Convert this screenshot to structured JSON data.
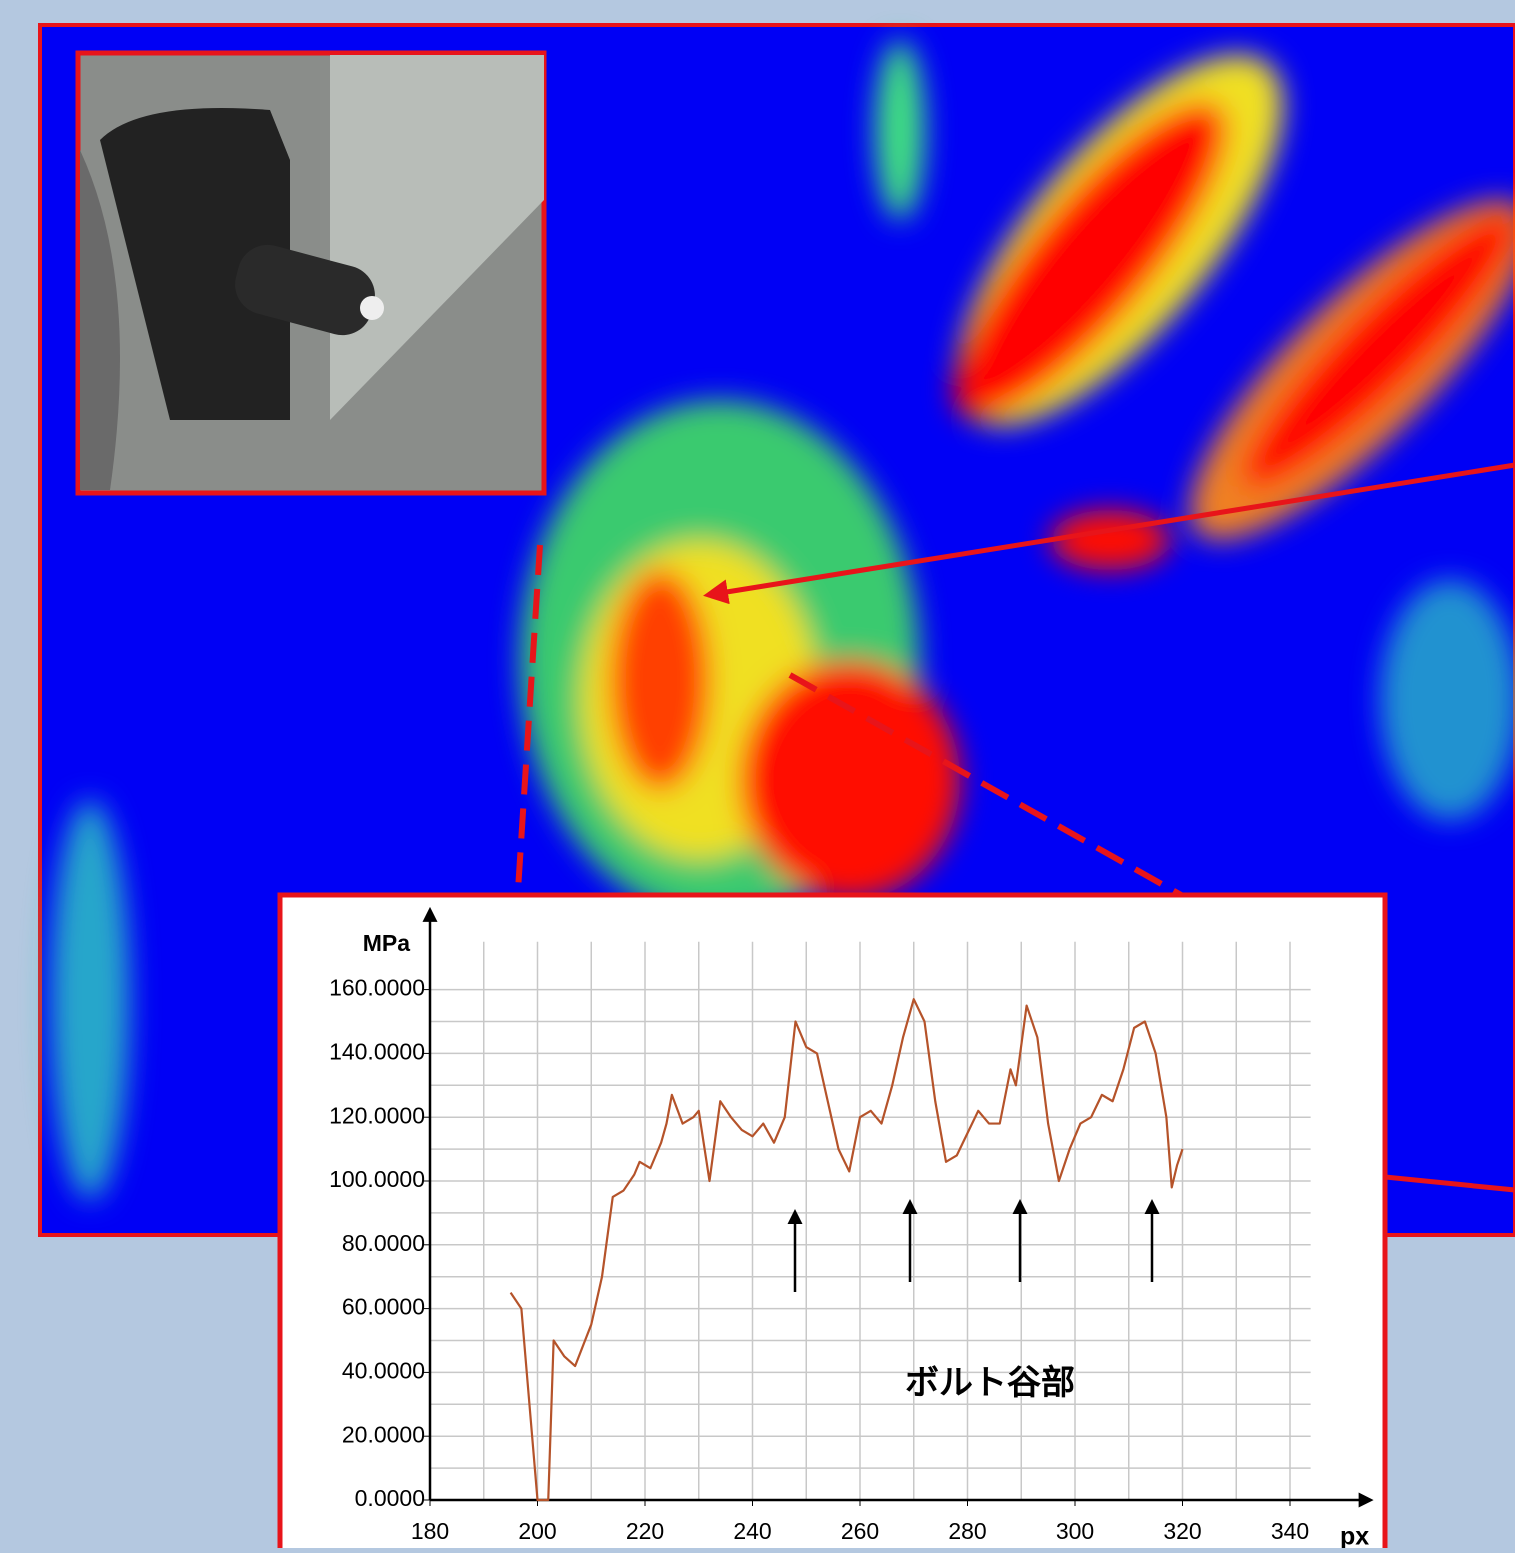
{
  "chart_data": {
    "type": "line",
    "y_label": "MPa",
    "x_label": "px",
    "annotation": "ボルト谷部",
    "x": [
      195,
      197,
      199,
      200,
      202,
      203,
      205,
      207,
      210,
      212,
      214,
      216,
      218,
      219,
      221,
      223,
      224,
      225,
      227,
      229,
      230,
      232,
      234,
      236,
      238,
      240,
      242,
      244,
      246,
      248,
      250,
      252,
      254,
      256,
      258,
      260,
      262,
      264,
      266,
      268,
      270,
      272,
      274,
      276,
      278,
      280,
      282,
      284,
      286,
      288,
      289,
      291,
      293,
      295,
      297,
      299,
      301,
      303,
      305,
      307,
      309,
      311,
      313,
      315,
      317,
      318,
      319,
      320
    ],
    "values": [
      65,
      60,
      20,
      0,
      0,
      50,
      45,
      42,
      55,
      70,
      95,
      97,
      102,
      106,
      104,
      112,
      118,
      127,
      118,
      120,
      122,
      100,
      125,
      120,
      116,
      114,
      118,
      112,
      120,
      150,
      142,
      140,
      125,
      110,
      103,
      120,
      122,
      118,
      130,
      145,
      157,
      150,
      125,
      106,
      108,
      115,
      122,
      118,
      118,
      135,
      130,
      155,
      145,
      118,
      100,
      110,
      118,
      120,
      127,
      125,
      135,
      148,
      150,
      140,
      120,
      98,
      105,
      110
    ],
    "color": "#b5532a",
    "xlim": [
      180,
      355
    ],
    "ylim": [
      0,
      185
    ],
    "xticks": [
      180,
      200,
      220,
      240,
      260,
      280,
      300,
      320,
      340
    ],
    "yticks": [
      {
        "value": 0,
        "label": "0.0000"
      },
      {
        "value": 20,
        "label": "20.0000"
      },
      {
        "value": 40,
        "label": "40.0000"
      },
      {
        "value": 60,
        "label": "60.0000"
      },
      {
        "value": 80,
        "label": "80.0000"
      },
      {
        "value": 100,
        "label": "100.0000"
      },
      {
        "value": 120,
        "label": "120.0000"
      },
      {
        "value": 140,
        "label": "140.0000"
      },
      {
        "value": 160,
        "label": "160.0000"
      }
    ],
    "grid": true,
    "minor_grid": true
  }
}
